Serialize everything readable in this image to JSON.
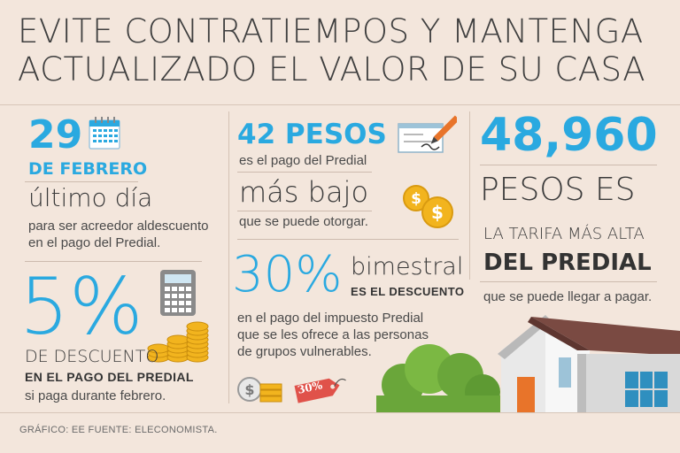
{
  "headline": {
    "line1": "EVITE CONTRATIEMPOS Y MANTENGA",
    "line2": "ACTUALIZADO EL VALOR DE SU CASA"
  },
  "col1": {
    "date_number": "29",
    "date_month": "DE FEBRERO",
    "last_day": "último día",
    "text1": "para ser acreedor aldescuento",
    "text2": "en el pago del Predial.",
    "percent": "5%",
    "de_descuento": "DE DESCUENTO",
    "en_el_pago": "EN EL PAGO DEL PREDIAL",
    "si_paga": "si paga durante febrero."
  },
  "col2": {
    "pesos": "42 PESOS",
    "es_el_pago": "es el pago del Predial",
    "mas_bajo": "más bajo",
    "que_se_puede": "que se puede otorgar.",
    "percent": "30%",
    "bimestral": "bimestral",
    "es_el_descuento": "ES EL DESCUENTO",
    "text1": "en el pago del impuesto Predial",
    "text2": "que se les ofrece a las personas",
    "text3": "de grupos vulnerables.",
    "tag_label": "30%"
  },
  "col3": {
    "amount": "48,960",
    "pesos_es": "PESOS ES",
    "la_tarifa": "LA TARIFA MÁS ALTA",
    "del_predial": "DEL PREDIAL",
    "que_se_puede": "que se puede llegar a pagar."
  },
  "footer": "GRÁFICO: EE  FUENTE: ELECONOMISTA.",
  "colors": {
    "accent": "#2aa9e0",
    "text": "#3f3f3f",
    "background": "#f3e6dc",
    "coin": "#f2b41e",
    "roof": "#7a4a42",
    "door": "#e8742a",
    "bush": "#6aa63a"
  },
  "icons": [
    "calendar-icon",
    "calculator-icon",
    "coins-icon",
    "check-icon",
    "dollar-coins-icon",
    "cash-icon",
    "price-tag-icon",
    "house-illustration",
    "bushes-illustration"
  ]
}
